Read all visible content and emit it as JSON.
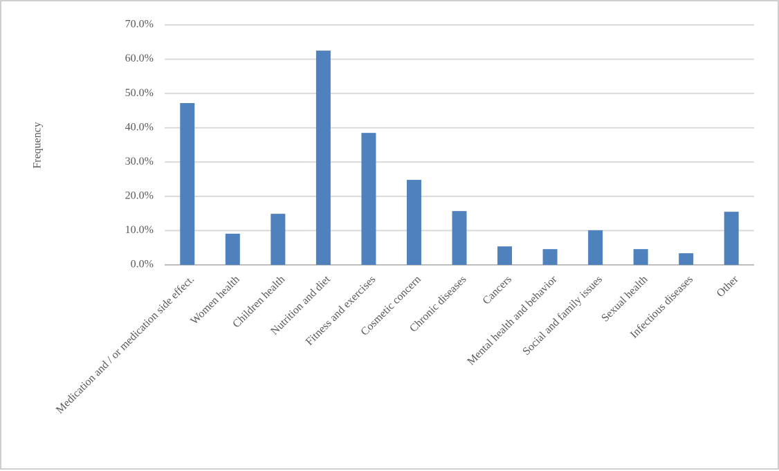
{
  "chart_data": {
    "type": "bar",
    "y_label": "Frequency",
    "categories": [
      "Medication and / or medication side effect.",
      "Women health",
      "Children health",
      "Nutrition and diet",
      "Fitness and exercises",
      "Cosmetic concern",
      "Chronic diseases",
      "Cancers",
      "Mental health and behavior",
      "Social and family issues",
      "Sexual health",
      "Infectious diseases",
      "Other"
    ],
    "values": [
      47.2,
      9.1,
      14.9,
      62.5,
      38.5,
      24.8,
      15.7,
      5.4,
      4.6,
      10.1,
      4.6,
      3.4,
      15.5
    ],
    "color": "#4f81bd",
    "ylim": [
      0,
      70
    ],
    "yticks": [
      {
        "value": 0,
        "label": "0.0%"
      },
      {
        "value": 10,
        "label": "10.0%"
      },
      {
        "value": 20,
        "label": "20.0%"
      },
      {
        "value": 30,
        "label": "30.0%"
      },
      {
        "value": 40,
        "label": "40.0%"
      },
      {
        "value": 50,
        "label": "50.0%"
      },
      {
        "value": 60,
        "label": "60.0%"
      },
      {
        "value": 70,
        "label": "70.0%"
      }
    ],
    "grid": true
  }
}
